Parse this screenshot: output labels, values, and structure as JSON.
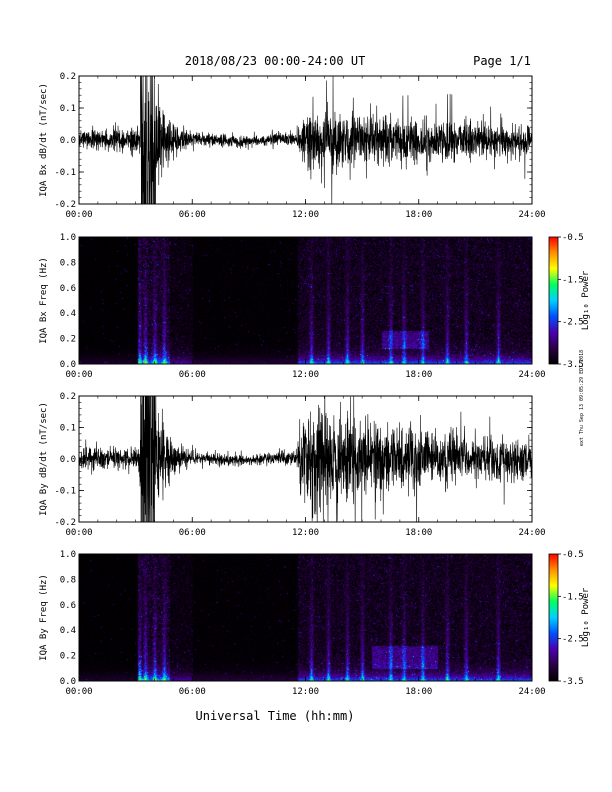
{
  "header": {
    "title": "2018/08/23  00:00-24:00 UT",
    "page": "Page 1/1"
  },
  "side_note": "ext Thu Sep 13 09:05:29 EDT 2018",
  "x_axis": {
    "label": "Universal Time (hh:mm)",
    "range": [
      0,
      24
    ],
    "tick_values": [
      0,
      6,
      12,
      18,
      24
    ],
    "tick_labels": [
      "00:00",
      "06:00",
      "12:00",
      "18:00",
      "24:00"
    ]
  },
  "colorbar": {
    "label": "Log₁₀ Power",
    "range": [
      -3.5,
      -0.5
    ],
    "tick_values": [
      -0.5,
      -1.5,
      -2.5,
      -3.5
    ],
    "tick_labels": [
      "-0.5",
      "-1.5",
      "-2.5",
      "-3.5"
    ],
    "colors": [
      "#000000",
      "#2a0045",
      "#4a00b0",
      "#0050ff",
      "#00d0ff",
      "#00ff60",
      "#ffff00",
      "#ff9000",
      "#ff0000"
    ]
  },
  "chart_data": [
    {
      "type": "line",
      "id": "bx-waveform",
      "ylabel": "IQA Bx dB/dt (nT/sec)",
      "ylim": [
        -0.2,
        0.2
      ],
      "y_tick_values": [
        0.2,
        0.1,
        0.0,
        -0.1,
        -0.2
      ],
      "y_tick_labels": [
        "0.2",
        "0.1",
        "0.0",
        "-0.1",
        "-0.2"
      ],
      "color": "#000000",
      "amplitude_envelope": {
        "x_hours": [
          0,
          2.5,
          3.2,
          3.3,
          4.0,
          4.5,
          5.0,
          6.0,
          9.0,
          11.5,
          11.8,
          12.5,
          15.0,
          18.0,
          21.0,
          24.0
        ],
        "amplitude": [
          0.03,
          0.03,
          0.04,
          0.2,
          0.2,
          0.1,
          0.05,
          0.02,
          0.015,
          0.02,
          0.07,
          0.08,
          0.07,
          0.065,
          0.05,
          0.04
        ]
      }
    },
    {
      "type": "heatmap",
      "id": "bx-spectrogram",
      "ylabel": "IQA Bx Freq (Hz)",
      "ylim": [
        0,
        1
      ],
      "y_tick_values": [
        1.0,
        0.8,
        0.6,
        0.4,
        0.2,
        0.0
      ],
      "y_tick_labels": [
        "1.0",
        "0.8",
        "0.6",
        "0.4",
        "0.2",
        "0.0"
      ],
      "zlim": [
        -3.5,
        -0.5
      ],
      "bright_bands_hours": [
        3.2,
        3.5,
        4.0,
        4.5,
        12.3,
        13.2,
        14.2,
        15.0,
        16.5,
        17.2,
        18.2,
        19.5,
        20.5,
        22.2
      ],
      "enhanced_interval_hours": [
        16.0,
        18.5
      ],
      "enhanced_freq_hz": [
        0.12,
        0.26
      ]
    },
    {
      "type": "line",
      "id": "by-waveform",
      "ylabel": "IQA By dB/dt (nT/sec)",
      "ylim": [
        -0.2,
        0.2
      ],
      "y_tick_values": [
        0.2,
        0.1,
        0.0,
        -0.1,
        -0.2
      ],
      "y_tick_labels": [
        "0.2",
        "0.1",
        "0.0",
        "-0.1",
        "-0.2"
      ],
      "color": "#000000",
      "amplitude_envelope": {
        "x_hours": [
          0,
          2.5,
          3.2,
          3.3,
          4.0,
          4.5,
          5.0,
          6.0,
          9.0,
          11.5,
          11.8,
          12.5,
          15.0,
          18.0,
          21.0,
          24.0
        ],
        "amplitude": [
          0.03,
          0.03,
          0.04,
          0.2,
          0.2,
          0.09,
          0.05,
          0.02,
          0.015,
          0.02,
          0.12,
          0.15,
          0.11,
          0.09,
          0.06,
          0.045
        ]
      }
    },
    {
      "type": "heatmap",
      "id": "by-spectrogram",
      "ylabel": "IQA By Freq (Hz)",
      "ylim": [
        0,
        1
      ],
      "y_tick_values": [
        1.0,
        0.8,
        0.6,
        0.4,
        0.2,
        0.0
      ],
      "y_tick_labels": [
        "1.0",
        "0.8",
        "0.6",
        "0.4",
        "0.2",
        "0.0"
      ],
      "zlim": [
        -3.5,
        -0.5
      ],
      "bright_bands_hours": [
        3.2,
        3.5,
        4.0,
        4.5,
        12.3,
        13.2,
        14.2,
        15.0,
        16.5,
        17.2,
        18.2,
        19.5,
        20.5,
        22.2
      ],
      "enhanced_interval_hours": [
        15.5,
        19.0
      ],
      "enhanced_freq_hz": [
        0.1,
        0.28
      ]
    }
  ]
}
